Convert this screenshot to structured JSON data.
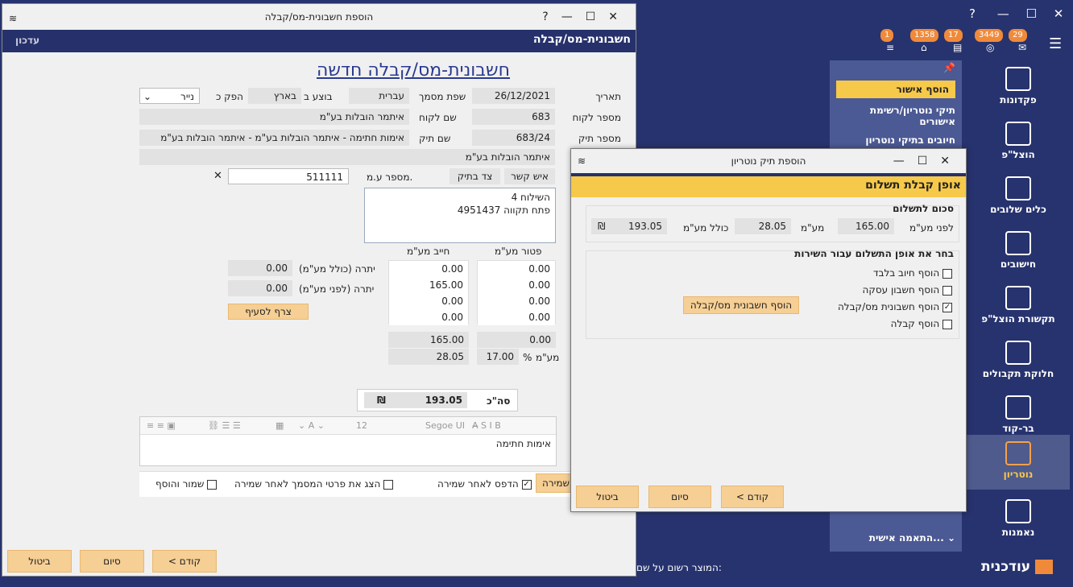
{
  "app": {
    "badges": [
      "1",
      "1358",
      "17",
      "3449",
      "29"
    ],
    "nav": [
      {
        "label": "פקדונות",
        "icon": "deposits-icon"
      },
      {
        "label": "הוצל\"פ",
        "icon": "gavel-icon"
      },
      {
        "label": "כלים שלובים",
        "icon": "tools-icon"
      },
      {
        "label": "חישובים",
        "icon": "calculator-icon"
      },
      {
        "label": "תקשורת הוצל\"פ",
        "icon": "network-icon"
      },
      {
        "label": "חלוקת תקבולים",
        "icon": "money-icon"
      },
      {
        "label": "בר-קוד",
        "icon": "barcode-icon"
      },
      {
        "label": "נוטריון",
        "icon": "certificate-icon"
      },
      {
        "label": "נאמנות",
        "icon": "handshake-icon"
      }
    ],
    "subpanel": {
      "items": [
        "הוסף אישור",
        "תיקי נוטריון/רשימת אישורים",
        "חיובים בתיקי נוטריון"
      ],
      "customize": "התאמה אישית..."
    },
    "footer": {
      "registered": "המוצר רשום על שם:",
      "brand": "עודכנית"
    }
  },
  "win1": {
    "title": "הוספת חשבונית-מס/קבלה",
    "subheader": "חשבונית-מס/קבלה",
    "update": "עדכון",
    "heading": "חשבונית-מס/קבלה חדשה",
    "labels": {
      "date": "תאריך",
      "doc_lang": "שפת מסמך",
      "exec_in": "בוצע ב",
      "issue": "הפק כ",
      "client_no": "מספר לקוח",
      "client_name": "שם לקוח",
      "file_no": "מספר תיק",
      "file_name": "שם תיק",
      "vat_no": "מספר ע.מ.",
      "exempt": "פטור מע\"מ",
      "liable": "חייב מע\"מ",
      "bal_incl": "יתרה (כולל מע\"מ)",
      "bal_before": "יתרה (לפני מע\"מ)",
      "vat": "מע\"מ",
      "pct": "%",
      "total": "סה\"כ"
    },
    "values": {
      "date": "26/12/2021",
      "doc_lang": "עברית",
      "exec_in": "בארץ",
      "issue": "נייר",
      "client_no": "683",
      "client_name": "איתמר הובלות בע\"מ",
      "file_no": "683/24",
      "file_name": "אימות חתימה - איתמר הובלות בע\"מ - איתמר הובלות בע\"מ",
      "client_full": "איתמר הובלות בע\"מ",
      "vat_no": "511111",
      "address1": "השילוח 4",
      "address2": "פתח תקווה 4951437",
      "bal_incl": "0.00",
      "bal_before": "0.00",
      "exempt": [
        "0.00",
        "0.00",
        "0.00",
        "0.00"
      ],
      "liable": [
        "0.00",
        "165.00",
        "0.00",
        "0.00"
      ],
      "exempt_sum": "0.00",
      "liable_sum": "165.00",
      "vat_pct": "17.00",
      "vat_amount": "28.05",
      "total": "193.05",
      "currency": "₪",
      "notes": "אימות חתימה",
      "font": "Segoe UI",
      "size": "12"
    },
    "buttons": {
      "contact": "איש קשר",
      "file_side": "צד בתיק",
      "attach": "צרף לסעיף",
      "prev": "< קודם",
      "finish": "סיום",
      "cancel": "ביטול",
      "save_tab": "שמירה"
    },
    "checks": {
      "print": "הדפס לאחר שמירה",
      "show": "הצג את פרטי המסמך לאחר שמירה",
      "save_add": "שמור והוסף"
    }
  },
  "win2": {
    "title": "הוספת תיק נוטריון",
    "header": "אופן קבלת תשלום",
    "sum_title": "סכום לתשלום",
    "before_vat_lbl": "לפני מע\"מ",
    "before_vat": "165.00",
    "vat_lbl": "מע\"מ",
    "vat": "28.05",
    "incl_lbl": "כולל מע\"מ",
    "incl": "193.05",
    "currency": "₪",
    "choose_title": "בחר את אופן התשלום עבור השירות",
    "options": [
      {
        "label": "הוסף חיוב בלבד",
        "checked": false
      },
      {
        "label": "הוסף חשבון עסקה",
        "checked": false
      },
      {
        "label": "הוסף חשבונית מס/קבלה",
        "checked": true
      },
      {
        "label": "הוסף קבלה",
        "checked": false
      }
    ],
    "add_invoice_btn": "הוסף חשבונית מס/קבלה",
    "prev": "< קודם",
    "finish": "סיום",
    "cancel": "ביטול"
  }
}
